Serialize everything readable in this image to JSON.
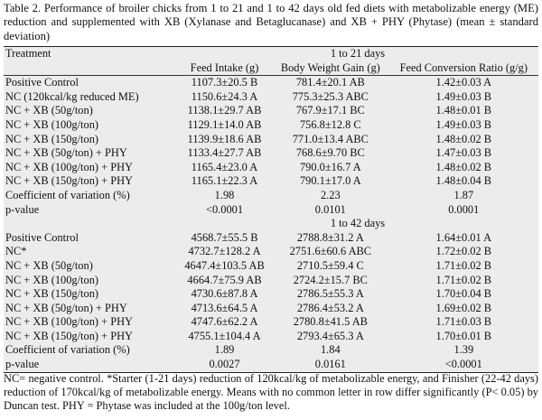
{
  "caption": "Table 2. Performance of broiler chicks from 1 to 21 and 1 to 42 days old fed diets with metabolizable energy (ME) reduction and supplemented with XB (Xylanase and Betaglucanase) and XB + PHY (Phytase) (mean ± standard deviation)",
  "header": {
    "treatment": "Treatment",
    "period1": "1 to 21 days",
    "period2": "1 to 42 days",
    "col_feed_intake": "Feed Intake (g)",
    "col_bwg": "Body Weight Gain (g)",
    "col_fcr": "Feed Conversion Ratio (g/g)"
  },
  "period1_rows": [
    {
      "treatment": "Positive Control",
      "fi": "1107.3±20.5 B",
      "bwg": "781.4±20.1 AB",
      "fcr": "1.42±0.03 A"
    },
    {
      "treatment": "NC (120kcal/kg reduced ME)",
      "fi": "1150.6±24.3 A",
      "bwg": "775.3±25.3 ABC",
      "fcr": "1.49±0.03 B"
    },
    {
      "treatment": "NC + XB (50g/ton)",
      "fi": "1138.1±29.7 AB",
      "bwg": "767.9±17.1 BC",
      "fcr": "1.48±0.01 B"
    },
    {
      "treatment": "NC + XB (100g/ton)",
      "fi": "1129.1±14.0 AB",
      "bwg": "756.8±12.8 C",
      "fcr": "1.49±0.03 B"
    },
    {
      "treatment": "NC + XB (150g/ton)",
      "fi": "1139.9±18.6 AB",
      "bwg": "771.0±13.4 ABC",
      "fcr": "1.48±0.02 B"
    },
    {
      "treatment": "NC + XB (50g/ton) + PHY",
      "fi": "1133.4±27.7 AB",
      "bwg": "768.6±9.70 BC",
      "fcr": "1.47±0.03 B"
    },
    {
      "treatment": "NC + XB (100g/ton) + PHY",
      "fi": "1165.4±23.0 A",
      "bwg": "790.0±16.7 A",
      "fcr": "1.48±0.02 B"
    },
    {
      "treatment": "NC + XB (150g/ton) + PHY",
      "fi": "1165.1±22.3 A",
      "bwg": "790.1±17.0 A",
      "fcr": "1.48±0.04 B"
    }
  ],
  "period1_stats": [
    {
      "label": "Coefficient of variation (%)",
      "fi": "1.98",
      "bwg": "2.23",
      "fcr": "1.87"
    },
    {
      "label": "p-value",
      "fi": "<0.0001",
      "bwg": "0.0101",
      "fcr": "0.0001"
    }
  ],
  "period2_rows": [
    {
      "treatment": "Positive Control",
      "fi": "4568.7±55.5 B",
      "bwg": "2788.8±31.2 A",
      "fcr": "1.64±0.01 A"
    },
    {
      "treatment": "NC*",
      "fi": "4732.7±128.2 A",
      "bwg": "2751.6±60.6 ABC",
      "fcr": "1.72±0.02 B"
    },
    {
      "treatment": "NC + XB (50g/ton)",
      "fi": "4647.4±103.5 AB",
      "bwg": "2710.5±59.4 C",
      "fcr": "1.71±0.02 B"
    },
    {
      "treatment": "NC + XB (100g/ton)",
      "fi": "4664.7±75.9 AB",
      "bwg": "2724.2±15.7 BC",
      "fcr": "1.71±0.02 B"
    },
    {
      "treatment": "NC + XB (150g/ton)",
      "fi": "4730.6±87.8 A",
      "bwg": "2786.5±55.3 A",
      "fcr": "1.70±0.04 B"
    },
    {
      "treatment": "NC + XB (50g/ton) + PHY",
      "fi": "4713.6±64.5 A",
      "bwg": "2786.4±53.2 A",
      "fcr": "1.69±0.02 B"
    },
    {
      "treatment": "NC + XB (100g/ton) + PHY",
      "fi": "4747.6±62.2 A",
      "bwg": "2780.8±41.5 AB",
      "fcr": "1.71±0.03 B"
    },
    {
      "treatment": "NC + XB (150g/ton) + PHY",
      "fi": "4755.1±104.4 A",
      "bwg": "2793.4±65.3 A",
      "fcr": "1.70±0.01 B"
    }
  ],
  "period2_stats": [
    {
      "label": "Coefficient of variation (%)",
      "fi": "1.89",
      "bwg": "1.84",
      "fcr": "1.39"
    },
    {
      "label": "p-value",
      "fi": "0.0027",
      "bwg": "0.0161",
      "fcr": "<0.0001"
    }
  ],
  "footnote": "NC= negative control. *Starter (1-21 days) reduction of 120kcal/kg of metabolizable energy, and Finisher (22-42 days) reduction of 170kcal/kg of metabolizable energy. Means with no common letter in row differ significantly (P< 0.05) by Duncan test. PHY = Phytase was included at the 100g/ton level."
}
